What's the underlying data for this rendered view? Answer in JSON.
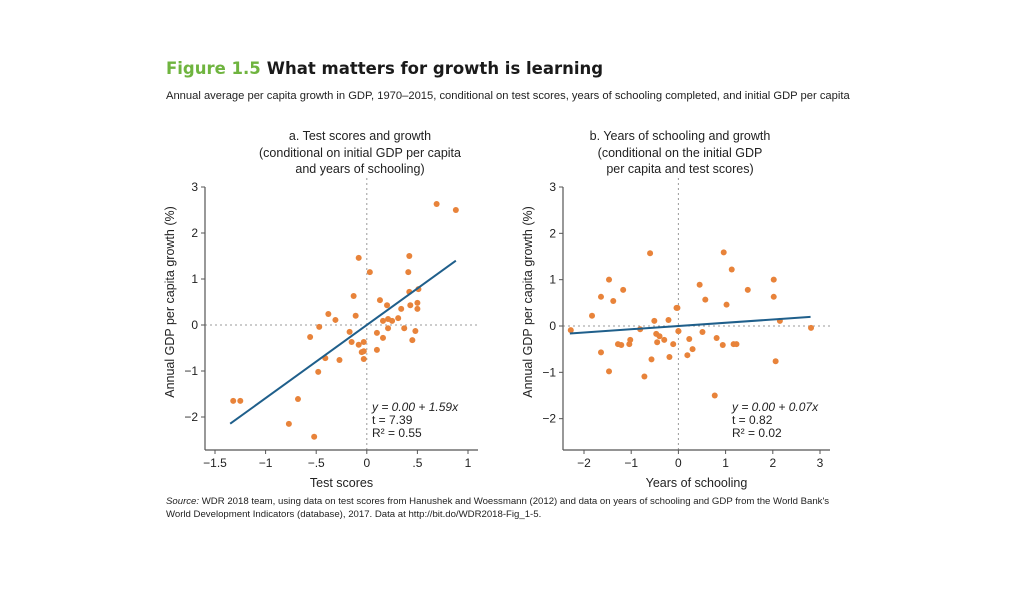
{
  "figure": {
    "number": "Figure 1.5",
    "title": "What matters for growth is learning",
    "number_color": "#6fb43f",
    "subtitle": "Annual average per capita growth in GDP, 1970–2015, conditional on test scores, years of schooling completed, and initial GDP per capita"
  },
  "source": {
    "label": "Source:",
    "text": " WDR 2018 team, using data on test scores from Hanushek and Woessmann (2012) and data on years of schooling and GDP from the World Bank's World Development Indicators (database), 2017. Data at http://bit.do/WDR2018-Fig_1-5."
  },
  "colors": {
    "point": "#e8833a",
    "line": "#1f5f8b",
    "axis": "#555555",
    "ref": "#9a9a9a"
  },
  "chart_data": [
    {
      "type": "scatter",
      "title_lines": [
        "a. Test scores and growth",
        "(conditional on initial GDP per capita",
        "and years of schooling)"
      ],
      "xlabel": "Test scores",
      "ylabel": "Annual GDP per capita growth (%)",
      "xlim": [
        -1.55,
        1.05
      ],
      "ylim": [
        -2.7,
        3.1
      ],
      "xticks": [
        -1.5,
        -1,
        -0.5,
        0,
        0.5,
        1
      ],
      "xtick_labels": [
        "−1.5",
        "−1",
        "−.5",
        "0",
        ".5",
        "1"
      ],
      "yticks": [
        -2,
        -1,
        0,
        1,
        2,
        3
      ],
      "ytick_labels": [
        "−2",
        "−1",
        "0",
        "1",
        "2",
        "3"
      ],
      "reference_lines": {
        "x": 0,
        "y": 0,
        "style": "dotted"
      },
      "points": [
        [
          -1.32,
          -1.65
        ],
        [
          -1.25,
          -1.65
        ],
        [
          -0.68,
          -1.61
        ],
        [
          -0.77,
          -2.15
        ],
        [
          -0.52,
          -2.43
        ],
        [
          -0.48,
          -1.02
        ],
        [
          -0.41,
          -0.72
        ],
        [
          -0.27,
          -0.76
        ],
        [
          -0.56,
          -0.26
        ],
        [
          -0.47,
          -0.04
        ],
        [
          -0.38,
          0.24
        ],
        [
          -0.31,
          0.11
        ],
        [
          -0.11,
          0.2
        ],
        [
          -0.17,
          -0.15
        ],
        [
          -0.15,
          -0.37
        ],
        [
          -0.08,
          -0.43
        ],
        [
          -0.03,
          -0.37
        ],
        [
          -0.05,
          -0.59
        ],
        [
          -0.03,
          -0.57
        ],
        [
          -0.03,
          -0.74
        ],
        [
          -0.08,
          1.46
        ],
        [
          0.42,
          1.5
        ],
        [
          0.03,
          1.15
        ],
        [
          0.41,
          1.15
        ],
        [
          -0.13,
          0.63
        ],
        [
          0.42,
          0.72
        ],
        [
          0.51,
          0.78
        ],
        [
          0.13,
          0.54
        ],
        [
          0.2,
          0.43
        ],
        [
          0.43,
          0.43
        ],
        [
          0.5,
          0.48
        ],
        [
          0.5,
          0.35
        ],
        [
          0.34,
          0.35
        ],
        [
          0.16,
          0.09
        ],
        [
          0.21,
          0.13
        ],
        [
          0.25,
          0.09
        ],
        [
          0.31,
          0.15
        ],
        [
          0.21,
          -0.07
        ],
        [
          0.37,
          -0.07
        ],
        [
          0.48,
          -0.13
        ],
        [
          0.1,
          -0.17
        ],
        [
          0.16,
          -0.28
        ],
        [
          0.45,
          -0.33
        ],
        [
          0.1,
          -0.54
        ],
        [
          0.69,
          2.63
        ],
        [
          0.88,
          2.5
        ]
      ],
      "fit": {
        "intercept": 0.0,
        "slope": 1.59,
        "x_range": [
          -1.35,
          0.88
        ]
      },
      "stats": {
        "equation": "y = 0.00 + 1.59x",
        "t": "t = 7.39",
        "r2": "R² = 0.55"
      }
    },
    {
      "type": "scatter",
      "title_lines": [
        "b. Years of schooling and growth",
        "(conditional on the initial GDP",
        "per capita and test scores)"
      ],
      "xlabel": "Years of schooling",
      "ylabel": "Annual GDP per capita growth (%)",
      "xlim": [
        -2.45,
        3.15
      ],
      "ylim": [
        -2.7,
        3.1
      ],
      "xticks": [
        -2,
        -1,
        0,
        1,
        2,
        3
      ],
      "xtick_labels": [
        "−2",
        "−1",
        "0",
        "1",
        "2",
        "3"
      ],
      "yticks": [
        -2,
        -1,
        0,
        1,
        2,
        3
      ],
      "ytick_labels": [
        "−2",
        "−1",
        "0",
        "1",
        "2",
        "3"
      ],
      "reference_lines": {
        "x": 0,
        "y": 0,
        "style": "dotted"
      },
      "points": [
        [
          -0.6,
          1.57
        ],
        [
          -1.47,
          1.0
        ],
        [
          -1.17,
          0.78
        ],
        [
          -1.64,
          0.63
        ],
        [
          -1.38,
          0.54
        ],
        [
          -1.83,
          0.22
        ],
        [
          -0.04,
          0.39
        ],
        [
          -0.51,
          0.11
        ],
        [
          -0.21,
          0.13
        ],
        [
          -2.28,
          -0.09
        ],
        [
          -0.81,
          -0.07
        ],
        [
          0.0,
          -0.11
        ],
        [
          -0.47,
          -0.17
        ],
        [
          -0.4,
          -0.22
        ],
        [
          -0.3,
          -0.3
        ],
        [
          -0.45,
          -0.35
        ],
        [
          -1.02,
          -0.3
        ],
        [
          -1.04,
          -0.39
        ],
        [
          -1.28,
          -0.39
        ],
        [
          -1.21,
          -0.41
        ],
        [
          -0.11,
          -0.39
        ],
        [
          -1.64,
          -0.57
        ],
        [
          -0.57,
          -0.72
        ],
        [
          -0.19,
          -0.67
        ],
        [
          -1.47,
          -0.98
        ],
        [
          -0.72,
          -1.09
        ],
        [
          0.96,
          1.59
        ],
        [
          1.13,
          1.22
        ],
        [
          0.45,
          0.89
        ],
        [
          2.02,
          1.0
        ],
        [
          1.47,
          0.78
        ],
        [
          2.02,
          0.63
        ],
        [
          0.57,
          0.57
        ],
        [
          1.02,
          0.46
        ],
        [
          -0.02,
          0.39
        ],
        [
          2.15,
          0.11
        ],
        [
          0.0,
          -0.11
        ],
        [
          0.51,
          -0.13
        ],
        [
          2.81,
          -0.04
        ],
        [
          0.23,
          -0.28
        ],
        [
          0.81,
          -0.26
        ],
        [
          0.94,
          -0.41
        ],
        [
          1.17,
          -0.39
        ],
        [
          1.23,
          -0.39
        ],
        [
          0.3,
          -0.5
        ],
        [
          0.19,
          -0.63
        ],
        [
          2.06,
          -0.76
        ],
        [
          0.77,
          -1.5
        ]
      ],
      "fit": {
        "intercept": 0.0,
        "slope": 0.07,
        "x_range": [
          -2.3,
          2.8
        ]
      },
      "stats": {
        "equation": "y = 0.00 + 0.07x",
        "t": "t = 0.82",
        "r2": "R² = 0.02"
      }
    }
  ]
}
